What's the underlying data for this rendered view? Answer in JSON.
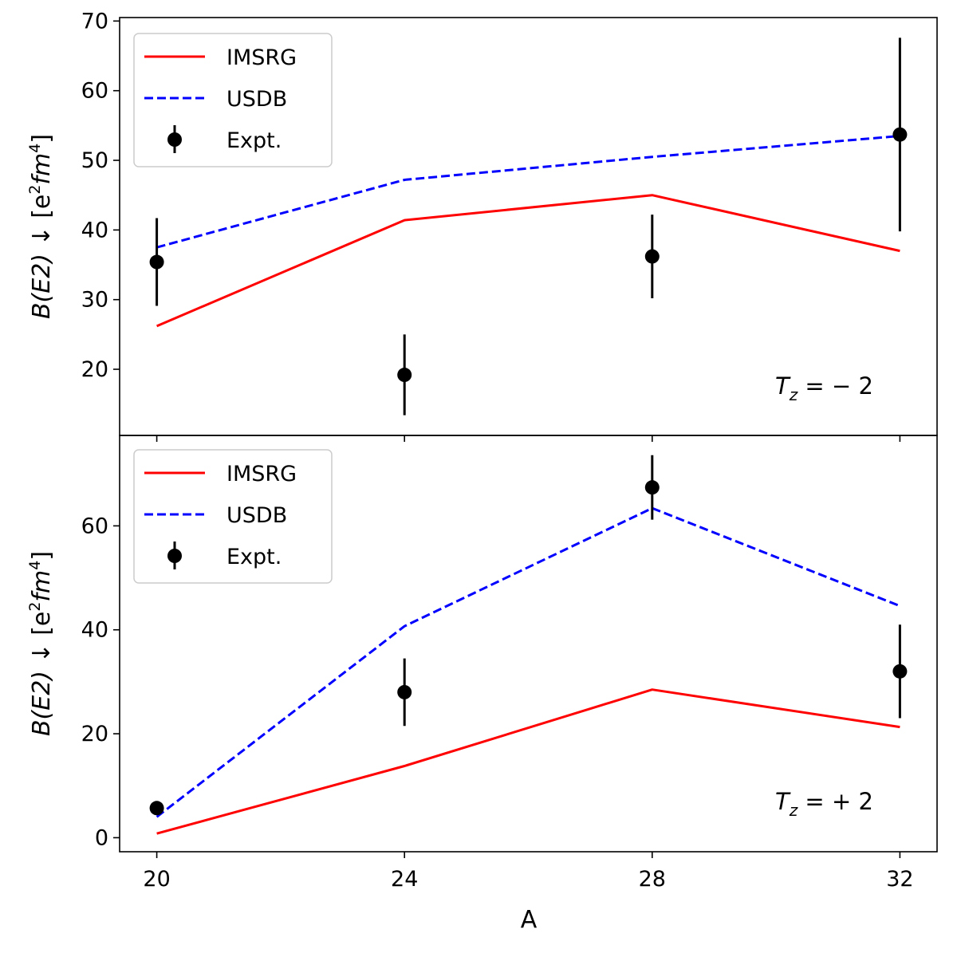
{
  "chart_data": [
    {
      "type": "line",
      "panel": "top",
      "x": [
        20,
        24,
        28,
        32
      ],
      "xlim": [
        19.4,
        32.6
      ],
      "ylim": [
        10.5,
        70.5
      ],
      "yticks": [
        20,
        30,
        40,
        50,
        60,
        70
      ],
      "ylabel": "B(E2) ↓ [e²fm⁴]",
      "annotation": "T_z = −2",
      "legend_position": "upper-left",
      "series": [
        {
          "name": "IMSRG",
          "style": "solid",
          "color": "#ff0000",
          "values": [
            26.2,
            41.4,
            45.0,
            37.0
          ]
        },
        {
          "name": "USDB",
          "style": "dashed",
          "color": "#0000ff",
          "values": [
            37.5,
            47.2,
            50.5,
            53.5
          ]
        },
        {
          "name": "Expt.",
          "style": "errorbar",
          "color": "#000000",
          "values": [
            35.4,
            19.2,
            36.2,
            53.7
          ],
          "errors": [
            6.3,
            5.8,
            6.0,
            13.9
          ]
        }
      ]
    },
    {
      "type": "line",
      "panel": "bottom",
      "x": [
        20,
        24,
        28,
        32
      ],
      "xlim": [
        19.4,
        32.6
      ],
      "ylim": [
        -2.7,
        77.4
      ],
      "yticks": [
        0,
        20,
        40,
        60
      ],
      "xticks": [
        20,
        24,
        28,
        32
      ],
      "xlabel": "A",
      "ylabel": "B(E2) ↓ [e²fm⁴]",
      "annotation": "T_z = +2",
      "legend_position": "upper-left",
      "series": [
        {
          "name": "IMSRG",
          "style": "solid",
          "color": "#ff0000",
          "values": [
            0.8,
            13.8,
            28.5,
            21.3
          ]
        },
        {
          "name": "USDB",
          "style": "dashed",
          "color": "#0000ff",
          "values": [
            4.0,
            40.7,
            63.4,
            44.6
          ]
        },
        {
          "name": "Expt.",
          "style": "errorbar",
          "color": "#000000",
          "values": [
            5.7,
            28.0,
            67.4,
            32.0
          ],
          "errors": [
            0.5,
            6.5,
            6.2,
            9.0
          ]
        }
      ]
    }
  ],
  "text": {
    "top_ylabel_main": "B(E2)",
    "top_ylabel_rest": " ↓ [e",
    "ylabel_sup2": "2",
    "ylabel_fm": "fm",
    "ylabel_sup4": "4",
    "ylabel_close": "]",
    "annot_T": "T",
    "annot_z": "z",
    "annot_top_rhs": " = − 2",
    "annot_bottom_rhs": " = + 2",
    "xlabel": "A"
  }
}
